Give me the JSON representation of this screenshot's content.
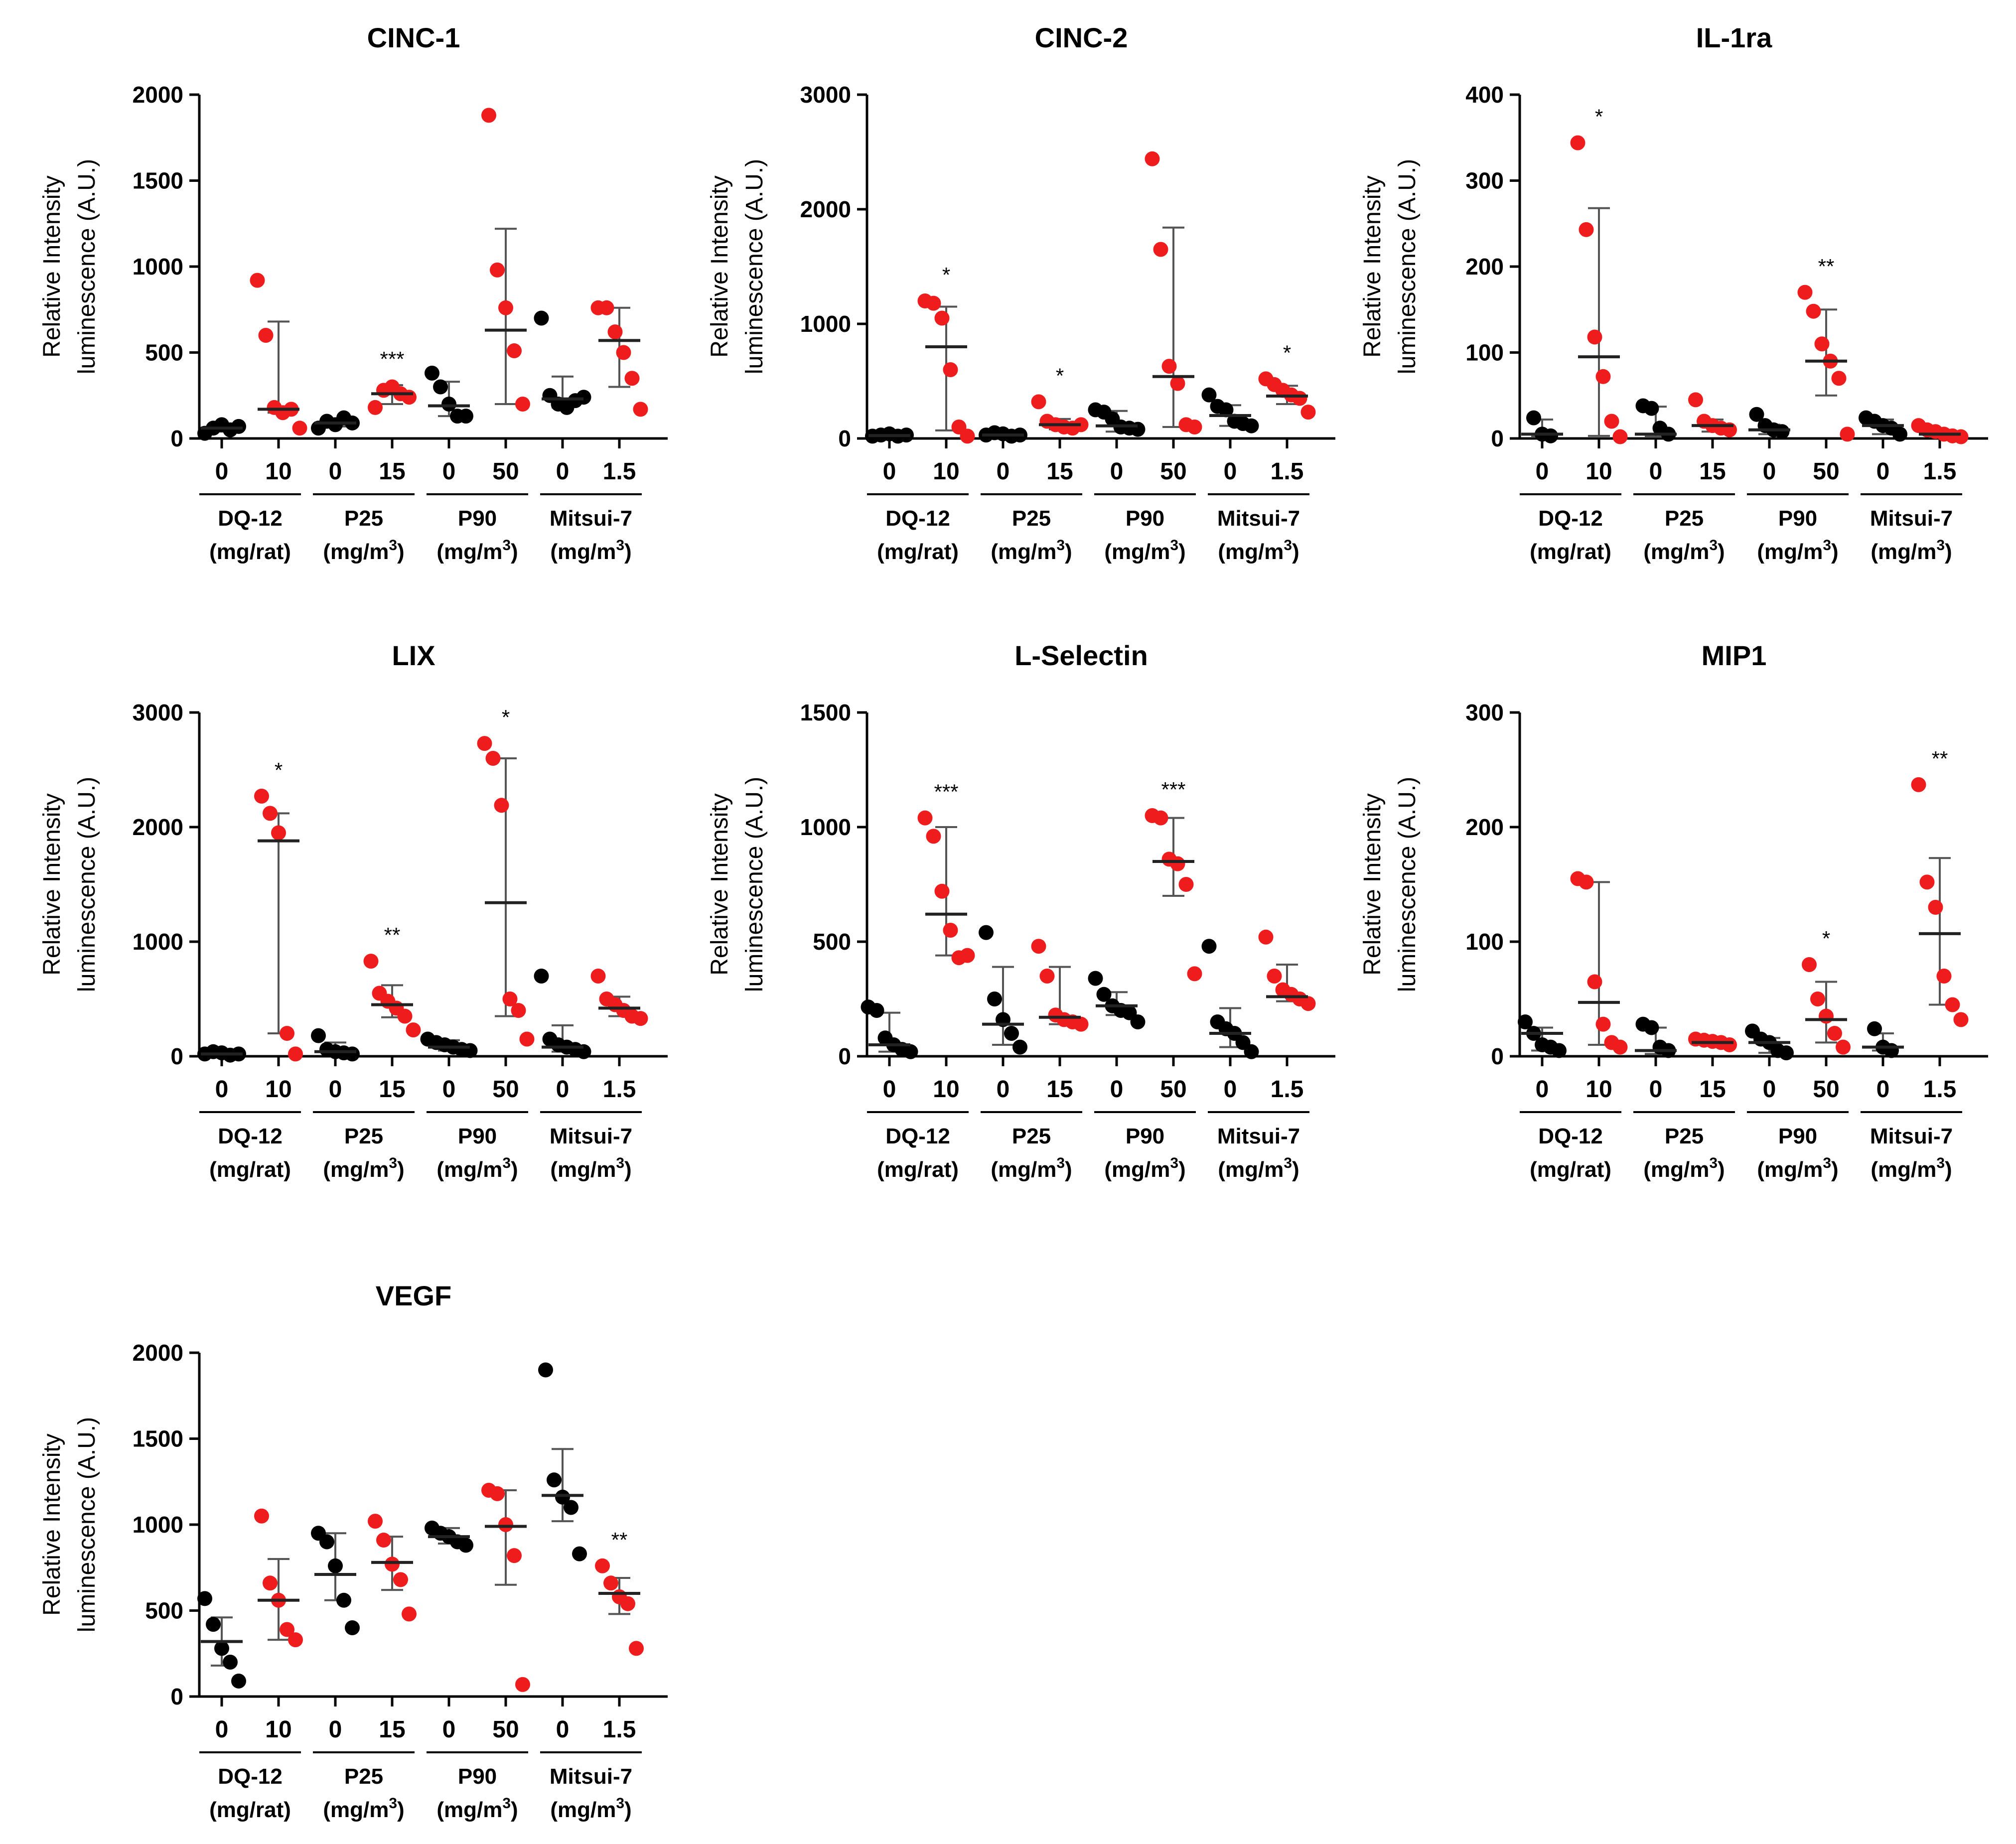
{
  "figure": {
    "y_axis_label_line1": "Relative Intensity",
    "y_axis_label_line2": "luminescence (A.U.)",
    "x_values": [
      "0",
      "10",
      "0",
      "15",
      "0",
      "50",
      "0",
      "1.5"
    ],
    "groups": [
      {
        "name": "DQ-12",
        "unit_prefix": "(mg/rat)",
        "unit_sup": ""
      },
      {
        "name": "P25",
        "unit_prefix": "(mg/m",
        "unit_sup": "3"
      },
      {
        "name": "P90",
        "unit_prefix": "(mg/m",
        "unit_sup": "3"
      },
      {
        "name": "Mitsui-7",
        "unit_prefix": "(mg/m",
        "unit_sup": "3"
      }
    ],
    "colors": {
      "control": "#000000",
      "exposed": "#ee1c1c",
      "axis": "#000000",
      "errorbar": "#555555"
    }
  },
  "chart_data": [
    {
      "type": "scatter",
      "title": "CINC-1",
      "ylim": [
        0,
        2000
      ],
      "yticks": [
        "0",
        "500",
        "1000",
        "1500",
        "2000"
      ],
      "conditions": [
        {
          "points": [
            30,
            60,
            80,
            50,
            70
          ],
          "mean": 60,
          "lo": 40,
          "hi": 80,
          "sig": ""
        },
        {
          "points": [
            920,
            600,
            180,
            150,
            170,
            60
          ],
          "mean": 170,
          "lo": 150,
          "hi": 680,
          "sig": ""
        },
        {
          "points": [
            60,
            100,
            80,
            120,
            90
          ],
          "mean": 90,
          "lo": 70,
          "hi": 110,
          "sig": ""
        },
        {
          "points": [
            180,
            280,
            300,
            260,
            240
          ],
          "mean": 260,
          "lo": 200,
          "hi": 310,
          "sig": "***"
        },
        {
          "points": [
            380,
            300,
            200,
            130,
            130
          ],
          "mean": 190,
          "lo": 130,
          "hi": 330,
          "sig": ""
        },
        {
          "points": [
            1880,
            980,
            760,
            510,
            200
          ],
          "mean": 630,
          "lo": 200,
          "hi": 1220,
          "sig": ""
        },
        {
          "points": [
            700,
            250,
            200,
            180,
            220,
            240
          ],
          "mean": 230,
          "lo": 180,
          "hi": 360,
          "sig": ""
        },
        {
          "points": [
            760,
            760,
            620,
            500,
            350,
            170
          ],
          "mean": 570,
          "lo": 300,
          "hi": 760,
          "sig": ""
        }
      ]
    },
    {
      "type": "scatter",
      "title": "CINC-2",
      "ylim": [
        0,
        3000
      ],
      "yticks": [
        "0",
        "1000",
        "2000",
        "3000"
      ],
      "conditions": [
        {
          "points": [
            20,
            30,
            40,
            20,
            30
          ],
          "mean": 25,
          "lo": 10,
          "hi": 40,
          "sig": ""
        },
        {
          "points": [
            1200,
            1180,
            1050,
            600,
            100,
            20
          ],
          "mean": 800,
          "lo": 70,
          "hi": 1150,
          "sig": "*"
        },
        {
          "points": [
            30,
            50,
            40,
            20,
            30
          ],
          "mean": 30,
          "lo": 10,
          "hi": 50,
          "sig": ""
        },
        {
          "points": [
            320,
            150,
            120,
            100,
            90,
            120
          ],
          "mean": 120,
          "lo": 80,
          "hi": 170,
          "sig": "*"
        },
        {
          "points": [
            250,
            230,
            170,
            100,
            90,
            80
          ],
          "mean": 110,
          "lo": 60,
          "hi": 240,
          "sig": ""
        },
        {
          "points": [
            2440,
            1650,
            630,
            480,
            120,
            100
          ],
          "mean": 540,
          "lo": 100,
          "hi": 1840,
          "sig": ""
        },
        {
          "points": [
            380,
            280,
            250,
            150,
            130,
            110
          ],
          "mean": 200,
          "lo": 110,
          "hi": 290,
          "sig": ""
        },
        {
          "points": [
            520,
            470,
            420,
            380,
            350,
            230
          ],
          "mean": 370,
          "lo": 300,
          "hi": 460,
          "sig": "*"
        }
      ]
    },
    {
      "type": "scatter",
      "title": "IL-1ra",
      "ylim": [
        0,
        400
      ],
      "yticks": [
        "0",
        "100",
        "200",
        "300",
        "400"
      ],
      "conditions": [
        {
          "points": [
            24,
            5,
            3
          ],
          "mean": 5,
          "lo": 2,
          "hi": 22,
          "sig": ""
        },
        {
          "points": [
            344,
            243,
            118,
            72,
            20,
            2
          ],
          "mean": 95,
          "lo": 3,
          "hi": 268,
          "sig": "*"
        },
        {
          "points": [
            38,
            35,
            12,
            5
          ],
          "mean": 5,
          "lo": 2,
          "hi": 37,
          "sig": ""
        },
        {
          "points": [
            45,
            20,
            15,
            12,
            10
          ],
          "mean": 15,
          "lo": 8,
          "hi": 22,
          "sig": ""
        },
        {
          "points": [
            28,
            15,
            10,
            8
          ],
          "mean": 10,
          "lo": 5,
          "hi": 16,
          "sig": ""
        },
        {
          "points": [
            170,
            148,
            110,
            90,
            70,
            5
          ],
          "mean": 90,
          "lo": 50,
          "hi": 150,
          "sig": "**"
        },
        {
          "points": [
            24,
            20,
            15,
            12,
            5
          ],
          "mean": 15,
          "lo": 5,
          "hi": 22,
          "sig": ""
        },
        {
          "points": [
            15,
            10,
            8,
            5,
            3,
            2
          ],
          "mean": 5,
          "lo": 2,
          "hi": 10,
          "sig": ""
        }
      ]
    },
    {
      "type": "scatter",
      "title": "LIX",
      "ylim": [
        0,
        3000
      ],
      "yticks": [
        "0",
        "1000",
        "2000",
        "3000"
      ],
      "conditions": [
        {
          "points": [
            20,
            40,
            30,
            10,
            20
          ],
          "mean": 20,
          "lo": 10,
          "hi": 40,
          "sig": ""
        },
        {
          "points": [
            2270,
            2120,
            1950,
            200,
            20
          ],
          "mean": 1880,
          "lo": 200,
          "hi": 2120,
          "sig": "*"
        },
        {
          "points": [
            180,
            60,
            40,
            30,
            20
          ],
          "mean": 40,
          "lo": 20,
          "hi": 120,
          "sig": ""
        },
        {
          "points": [
            830,
            550,
            480,
            420,
            350,
            230
          ],
          "mean": 450,
          "lo": 340,
          "hi": 620,
          "sig": "**"
        },
        {
          "points": [
            150,
            120,
            100,
            80,
            60,
            50
          ],
          "mean": 80,
          "lo": 50,
          "hi": 140,
          "sig": ""
        },
        {
          "points": [
            2730,
            2600,
            2190,
            500,
            400,
            150
          ],
          "mean": 1340,
          "lo": 350,
          "hi": 2600,
          "sig": "*"
        },
        {
          "points": [
            700,
            150,
            100,
            80,
            60,
            40
          ],
          "mean": 80,
          "lo": 40,
          "hi": 270,
          "sig": ""
        },
        {
          "points": [
            700,
            500,
            450,
            400,
            350,
            330
          ],
          "mean": 420,
          "lo": 350,
          "hi": 520,
          "sig": ""
        }
      ]
    },
    {
      "type": "scatter",
      "title": "L-Selectin",
      "ylim": [
        0,
        1500
      ],
      "yticks": [
        "0",
        "500",
        "1000",
        "1500"
      ],
      "conditions": [
        {
          "points": [
            215,
            200,
            80,
            50,
            30,
            20
          ],
          "mean": 50,
          "lo": 20,
          "hi": 190,
          "sig": ""
        },
        {
          "points": [
            1040,
            960,
            720,
            550,
            430,
            440
          ],
          "mean": 620,
          "lo": 440,
          "hi": 1000,
          "sig": "***"
        },
        {
          "points": [
            540,
            250,
            160,
            100,
            40
          ],
          "mean": 140,
          "lo": 50,
          "hi": 390,
          "sig": ""
        },
        {
          "points": [
            480,
            350,
            180,
            160,
            150,
            140
          ],
          "mean": 170,
          "lo": 140,
          "hi": 390,
          "sig": ""
        },
        {
          "points": [
            340,
            270,
            220,
            200,
            190,
            150
          ],
          "mean": 220,
          "lo": 180,
          "hi": 280,
          "sig": ""
        },
        {
          "points": [
            1050,
            1040,
            860,
            840,
            750,
            360
          ],
          "mean": 850,
          "lo": 700,
          "hi": 1040,
          "sig": "***"
        },
        {
          "points": [
            480,
            150,
            120,
            100,
            60,
            20
          ],
          "mean": 100,
          "lo": 40,
          "hi": 210,
          "sig": ""
        },
        {
          "points": [
            520,
            350,
            290,
            270,
            250,
            230
          ],
          "mean": 260,
          "lo": 240,
          "hi": 400,
          "sig": ""
        }
      ]
    },
    {
      "type": "scatter",
      "title": "MIP1",
      "ylim": [
        0,
        300
      ],
      "yticks": [
        "0",
        "100",
        "200",
        "300"
      ],
      "conditions": [
        {
          "points": [
            30,
            20,
            10,
            8,
            5
          ],
          "mean": 20,
          "lo": 5,
          "hi": 25,
          "sig": ""
        },
        {
          "points": [
            155,
            152,
            65,
            28,
            12,
            8
          ],
          "mean": 47,
          "lo": 10,
          "hi": 152,
          "sig": ""
        },
        {
          "points": [
            28,
            25,
            8,
            5
          ],
          "mean": 5,
          "lo": 2,
          "hi": 25,
          "sig": ""
        },
        {
          "points": [
            15,
            14,
            13,
            12,
            10
          ],
          "mean": 12,
          "lo": 10,
          "hi": 14,
          "sig": ""
        },
        {
          "points": [
            22,
            15,
            12,
            5,
            3
          ],
          "mean": 12,
          "lo": 3,
          "hi": 16,
          "sig": ""
        },
        {
          "points": [
            80,
            50,
            35,
            20,
            8
          ],
          "mean": 32,
          "lo": 12,
          "hi": 65,
          "sig": "*"
        },
        {
          "points": [
            24,
            8,
            5
          ],
          "mean": 8,
          "lo": 5,
          "hi": 20,
          "sig": ""
        },
        {
          "points": [
            237,
            152,
            130,
            70,
            45,
            32
          ],
          "mean": 107,
          "lo": 45,
          "hi": 173,
          "sig": "**"
        }
      ]
    },
    {
      "type": "scatter",
      "title": "VEGF",
      "ylim": [
        0,
        2000
      ],
      "yticks": [
        "0",
        "500",
        "1000",
        "1500",
        "2000"
      ],
      "conditions": [
        {
          "points": [
            570,
            420,
            280,
            200,
            90
          ],
          "mean": 320,
          "lo": 180,
          "hi": 460,
          "sig": ""
        },
        {
          "points": [
            1050,
            660,
            560,
            390,
            330
          ],
          "mean": 560,
          "lo": 330,
          "hi": 800,
          "sig": ""
        },
        {
          "points": [
            950,
            900,
            760,
            560,
            400
          ],
          "mean": 710,
          "lo": 560,
          "hi": 950,
          "sig": ""
        },
        {
          "points": [
            1020,
            910,
            770,
            680,
            480
          ],
          "mean": 780,
          "lo": 620,
          "hi": 930,
          "sig": ""
        },
        {
          "points": [
            980,
            950,
            930,
            900,
            880
          ],
          "mean": 930,
          "lo": 890,
          "hi": 980,
          "sig": ""
        },
        {
          "points": [
            1200,
            1180,
            1000,
            820,
            70
          ],
          "mean": 990,
          "lo": 650,
          "hi": 1200,
          "sig": ""
        },
        {
          "points": [
            1900,
            1260,
            1160,
            1100,
            830
          ],
          "mean": 1170,
          "lo": 1020,
          "hi": 1440,
          "sig": ""
        },
        {
          "points": [
            760,
            660,
            580,
            540,
            280
          ],
          "mean": 600,
          "lo": 480,
          "hi": 690,
          "sig": "**"
        }
      ]
    }
  ]
}
